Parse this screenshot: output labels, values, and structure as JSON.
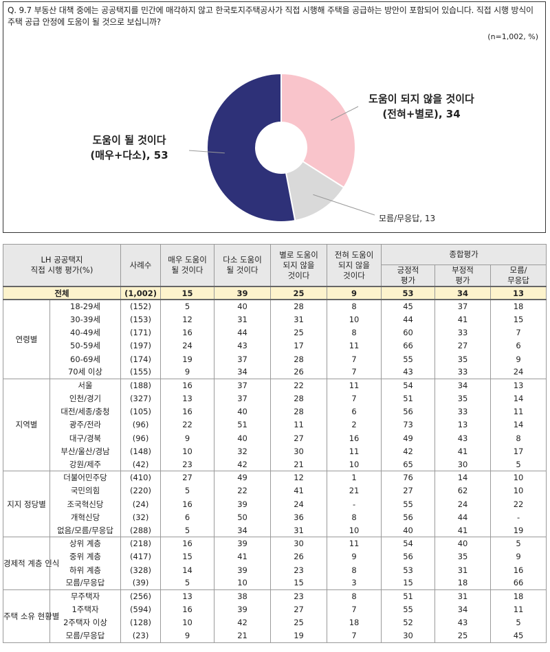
{
  "question": "Q. 9.7 부동산 대책 중에는 공공택지를 민간에 매각하지 않고 한국토지주택공사가 직접 시행해 주택을 공급하는 방안이 포함되어 있습니다. 직접 시행 방식이 주택 공급 안정에 도움이 될 것으로 보십니까?",
  "sample": "(n=1,002, %)",
  "chart_data": {
    "type": "pie",
    "slices": [
      {
        "line1": "도움이 되지 않을 것이다",
        "line2": "(전혀+별로), 34",
        "value": 34,
        "color": "#f9c4cb"
      },
      {
        "line1": "모름/무응답, 13",
        "line2": "",
        "value": 13,
        "color": "#d9d9d9"
      },
      {
        "line1": "도움이 될 것이다",
        "line2": "(매우+다소), 53",
        "value": 53,
        "color": "#2e3178"
      }
    ]
  },
  "table": {
    "header": {
      "title1": "LH 공공택지",
      "title2": "직접 시행 평가(%)",
      "count": "사례수",
      "c1a": "매우 도움이",
      "c1b": "될 것이다",
      "c2a": "다소 도움이",
      "c2b": "될 것이다",
      "c3a": "별로 도움이",
      "c3b": "되지 않을",
      "c3c": "것이다",
      "c4a": "전혀 도움이",
      "c4b": "되지 않을",
      "c4c": "것이다",
      "overall": "종합평가",
      "pos_a": "긍정적",
      "pos_b": "평가",
      "neg_a": "부정적",
      "neg_b": "평가",
      "dk_a": "모름/",
      "dk_b": "무응답"
    },
    "total": {
      "label": "전체",
      "n": "(1,002)",
      "vals": [
        "15",
        "39",
        "25",
        "9",
        "53",
        "34",
        "13"
      ]
    },
    "groups": [
      {
        "name": "연령별",
        "rows": [
          {
            "label": "18-29세",
            "n": "(152)",
            "vals": [
              "5",
              "40",
              "28",
              "8",
              "45",
              "37",
              "18"
            ]
          },
          {
            "label": "30-39세",
            "n": "(153)",
            "vals": [
              "12",
              "31",
              "31",
              "10",
              "44",
              "41",
              "15"
            ]
          },
          {
            "label": "40-49세",
            "n": "(171)",
            "vals": [
              "16",
              "44",
              "25",
              "8",
              "60",
              "33",
              "7"
            ]
          },
          {
            "label": "50-59세",
            "n": "(197)",
            "vals": [
              "24",
              "43",
              "17",
              "11",
              "66",
              "27",
              "6"
            ]
          },
          {
            "label": "60-69세",
            "n": "(174)",
            "vals": [
              "19",
              "37",
              "28",
              "7",
              "55",
              "35",
              "9"
            ]
          },
          {
            "label": "70세 이상",
            "n": "(155)",
            "vals": [
              "9",
              "34",
              "26",
              "7",
              "43",
              "33",
              "24"
            ]
          }
        ]
      },
      {
        "name": "지역별",
        "rows": [
          {
            "label": "서울",
            "n": "(188)",
            "vals": [
              "16",
              "37",
              "22",
              "11",
              "54",
              "34",
              "13"
            ]
          },
          {
            "label": "인천/경기",
            "n": "(327)",
            "vals": [
              "13",
              "37",
              "28",
              "7",
              "51",
              "35",
              "14"
            ]
          },
          {
            "label": "대전/세종/충청",
            "n": "(105)",
            "vals": [
              "16",
              "40",
              "28",
              "6",
              "56",
              "33",
              "11"
            ]
          },
          {
            "label": "광주/전라",
            "n": "(96)",
            "vals": [
              "22",
              "51",
              "11",
              "2",
              "73",
              "13",
              "14"
            ]
          },
          {
            "label": "대구/경북",
            "n": "(96)",
            "vals": [
              "9",
              "40",
              "27",
              "16",
              "49",
              "43",
              "8"
            ]
          },
          {
            "label": "부산/울산/경남",
            "n": "(148)",
            "vals": [
              "10",
              "32",
              "30",
              "11",
              "42",
              "41",
              "17"
            ]
          },
          {
            "label": "강원/제주",
            "n": "(42)",
            "vals": [
              "23",
              "42",
              "21",
              "10",
              "65",
              "30",
              "5"
            ]
          }
        ]
      },
      {
        "name": "지지 정당별",
        "rows": [
          {
            "label": "더불어민주당",
            "n": "(410)",
            "vals": [
              "27",
              "49",
              "12",
              "1",
              "76",
              "14",
              "10"
            ]
          },
          {
            "label": "국민의힘",
            "n": "(220)",
            "vals": [
              "5",
              "22",
              "41",
              "21",
              "27",
              "62",
              "10"
            ]
          },
          {
            "label": "조국혁신당",
            "n": "(24)",
            "vals": [
              "16",
              "39",
              "24",
              "-",
              "55",
              "24",
              "22"
            ]
          },
          {
            "label": "개혁신당",
            "n": "(32)",
            "vals": [
              "6",
              "50",
              "36",
              "8",
              "56",
              "44",
              "-"
            ]
          },
          {
            "label": "없음/모름/무응답",
            "n": "(288)",
            "vals": [
              "5",
              "34",
              "31",
              "10",
              "40",
              "41",
              "19"
            ]
          }
        ]
      },
      {
        "name": "경제적 계층 인식",
        "rows": [
          {
            "label": "상위 계층",
            "n": "(218)",
            "vals": [
              "16",
              "39",
              "30",
              "11",
              "54",
              "40",
              "5"
            ]
          },
          {
            "label": "중위 계층",
            "n": "(417)",
            "vals": [
              "15",
              "41",
              "26",
              "9",
              "56",
              "35",
              "9"
            ]
          },
          {
            "label": "하위 계층",
            "n": "(328)",
            "vals": [
              "14",
              "39",
              "23",
              "8",
              "53",
              "31",
              "16"
            ]
          },
          {
            "label": "모름/무응답",
            "n": "(39)",
            "vals": [
              "5",
              "10",
              "15",
              "3",
              "15",
              "18",
              "66"
            ]
          }
        ]
      },
      {
        "name": "주택 소유 현황별",
        "rows": [
          {
            "label": "무주택자",
            "n": "(256)",
            "vals": [
              "13",
              "38",
              "23",
              "8",
              "51",
              "31",
              "18"
            ]
          },
          {
            "label": "1주택자",
            "n": "(594)",
            "vals": [
              "16",
              "39",
              "27",
              "7",
              "55",
              "34",
              "11"
            ]
          },
          {
            "label": "2주택자 이상",
            "n": "(128)",
            "vals": [
              "10",
              "42",
              "25",
              "18",
              "52",
              "43",
              "5"
            ]
          },
          {
            "label": "모름/무응답",
            "n": "(23)",
            "vals": [
              "9",
              "21",
              "19",
              "7",
              "30",
              "25",
              "45"
            ]
          }
        ]
      }
    ]
  }
}
